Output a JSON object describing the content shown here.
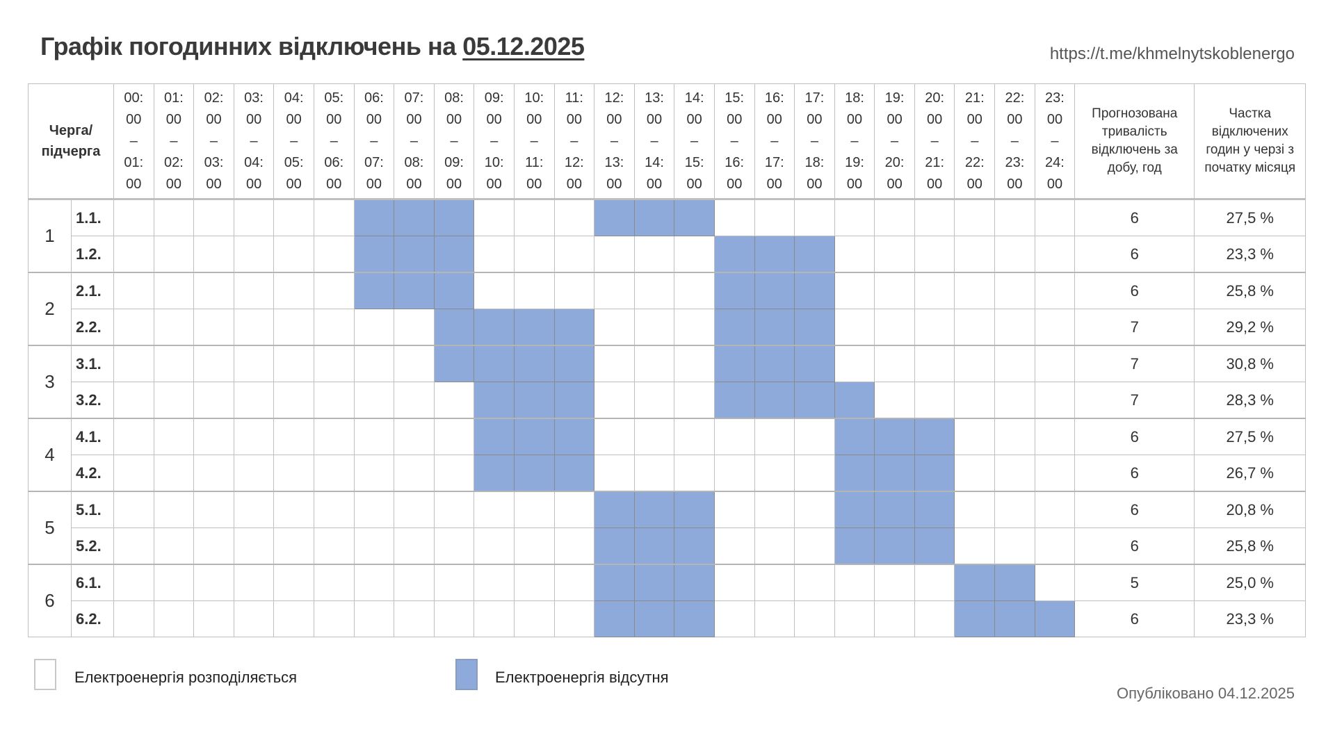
{
  "header": {
    "title_prefix": "Графік погодинних відключень на",
    "title_date": "05.12.2025",
    "url": "https://t.me/khmelnytskoblenergo"
  },
  "table": {
    "queue_header": "Черга/ підчерга",
    "duration_header": "Прогнозована тривалість відключень за добу, год",
    "share_header": "Частка відключених годин у черзі з початку місяця",
    "hours": [
      {
        "from": "00:",
        "from2": "00",
        "to": "01:",
        "to2": "00"
      },
      {
        "from": "01:",
        "from2": "00",
        "to": "02:",
        "to2": "00"
      },
      {
        "from": "02:",
        "from2": "00",
        "to": "03:",
        "to2": "00"
      },
      {
        "from": "03:",
        "from2": "00",
        "to": "04:",
        "to2": "00"
      },
      {
        "from": "04:",
        "from2": "00",
        "to": "05:",
        "to2": "00"
      },
      {
        "from": "05:",
        "from2": "00",
        "to": "06:",
        "to2": "00"
      },
      {
        "from": "06:",
        "from2": "00",
        "to": "07:",
        "to2": "00"
      },
      {
        "from": "07:",
        "from2": "00",
        "to": "08:",
        "to2": "00"
      },
      {
        "from": "08:",
        "from2": "00",
        "to": "09:",
        "to2": "00"
      },
      {
        "from": "09:",
        "from2": "00",
        "to": "10:",
        "to2": "00"
      },
      {
        "from": "10:",
        "from2": "00",
        "to": "11:",
        "to2": "00"
      },
      {
        "from": "11:",
        "from2": "00",
        "to": "12:",
        "to2": "00"
      },
      {
        "from": "12:",
        "from2": "00",
        "to": "13:",
        "to2": "00"
      },
      {
        "from": "13:",
        "from2": "00",
        "to": "14:",
        "to2": "00"
      },
      {
        "from": "14:",
        "from2": "00",
        "to": "15:",
        "to2": "00"
      },
      {
        "from": "15:",
        "from2": "00",
        "to": "16:",
        "to2": "00"
      },
      {
        "from": "16:",
        "from2": "00",
        "to": "17:",
        "to2": "00"
      },
      {
        "from": "17:",
        "from2": "00",
        "to": "18:",
        "to2": "00"
      },
      {
        "from": "18:",
        "from2": "00",
        "to": "19:",
        "to2": "00"
      },
      {
        "from": "19:",
        "from2": "00",
        "to": "20:",
        "to2": "00"
      },
      {
        "from": "20:",
        "from2": "00",
        "to": "21:",
        "to2": "00"
      },
      {
        "from": "21:",
        "from2": "00",
        "to": "22:",
        "to2": "00"
      },
      {
        "from": "22:",
        "from2": "00",
        "to": "23:",
        "to2": "00"
      },
      {
        "from": "23:",
        "from2": "00",
        "to": "24:",
        "to2": "00"
      }
    ],
    "dash": "–",
    "groups": [
      {
        "label": "1",
        "rows": [
          {
            "sub": "1.1.",
            "off": [
              6,
              7,
              8,
              12,
              13,
              14
            ],
            "duration": "6",
            "share": "27,5 %"
          },
          {
            "sub": "1.2.",
            "off": [
              6,
              7,
              8,
              15,
              16,
              17
            ],
            "duration": "6",
            "share": "23,3 %"
          }
        ]
      },
      {
        "label": "2",
        "rows": [
          {
            "sub": "2.1.",
            "off": [
              6,
              7,
              8,
              15,
              16,
              17
            ],
            "duration": "6",
            "share": "25,8 %"
          },
          {
            "sub": "2.2.",
            "off": [
              8,
              9,
              10,
              11,
              15,
              16,
              17
            ],
            "duration": "7",
            "share": "29,2 %"
          }
        ]
      },
      {
        "label": "3",
        "rows": [
          {
            "sub": "3.1.",
            "off": [
              8,
              9,
              10,
              11,
              15,
              16,
              17
            ],
            "duration": "7",
            "share": "30,8 %"
          },
          {
            "sub": "3.2.",
            "off": [
              9,
              10,
              11,
              15,
              16,
              17,
              18
            ],
            "duration": "7",
            "share": "28,3 %"
          }
        ]
      },
      {
        "label": "4",
        "rows": [
          {
            "sub": "4.1.",
            "off": [
              9,
              10,
              11,
              18,
              19,
              20
            ],
            "duration": "6",
            "share": "27,5 %"
          },
          {
            "sub": "4.2.",
            "off": [
              9,
              10,
              11,
              18,
              19,
              20
            ],
            "duration": "6",
            "share": "26,7 %"
          }
        ]
      },
      {
        "label": "5",
        "rows": [
          {
            "sub": "5.1.",
            "off": [
              12,
              13,
              14,
              18,
              19,
              20
            ],
            "duration": "6",
            "share": "20,8 %"
          },
          {
            "sub": "5.2.",
            "off": [
              12,
              13,
              14,
              18,
              19,
              20
            ],
            "duration": "6",
            "share": "25,8 %"
          }
        ]
      },
      {
        "label": "6",
        "rows": [
          {
            "sub": "6.1.",
            "off": [
              12,
              13,
              14,
              21,
              22
            ],
            "duration": "5",
            "share": "25,0 %"
          },
          {
            "sub": "6.2.",
            "off": [
              12,
              13,
              14,
              21,
              22,
              23
            ],
            "duration": "6",
            "share": "23,3 %"
          }
        ]
      }
    ]
  },
  "legend": {
    "on_label": "Електроенергія розподіляється",
    "off_label": "Електроенергія відсутня",
    "on_color": "#ffffff",
    "off_color": "#8eaadb"
  },
  "footer": {
    "published": "Опубліковано 04.12.2025"
  }
}
